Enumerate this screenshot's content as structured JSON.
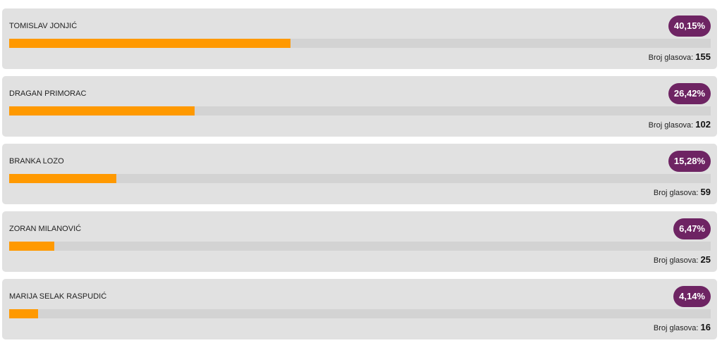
{
  "votes_label": "Broj glasova:",
  "colors": {
    "bar": "#ff9900",
    "badge": "#6e2463",
    "card": "#e1e1e1"
  },
  "candidates": [
    {
      "name": "TOMISLAV JONJIĆ",
      "percent_label": "40,15%",
      "percent": 40.15,
      "votes": "155"
    },
    {
      "name": "DRAGAN PRIMORAC",
      "percent_label": "26,42%",
      "percent": 26.42,
      "votes": "102"
    },
    {
      "name": "BRANKA LOZO",
      "percent_label": "15,28%",
      "percent": 15.28,
      "votes": "59"
    },
    {
      "name": "ZORAN MILANOVIĆ",
      "percent_label": "6,47%",
      "percent": 6.47,
      "votes": "25"
    },
    {
      "name": "MARIJA SELAK RASPUDIĆ",
      "percent_label": "4,14%",
      "percent": 4.14,
      "votes": "16"
    }
  ]
}
